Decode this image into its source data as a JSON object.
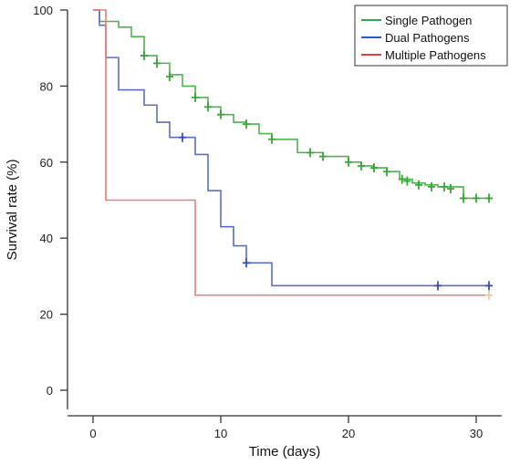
{
  "chart_data": {
    "type": "line",
    "step": true,
    "xlabel": "Time (days)",
    "ylabel": "Survival rate (%)",
    "xlim": [
      -2,
      32
    ],
    "ylim": [
      -5,
      100
    ],
    "x_ticks": [
      0,
      10,
      20,
      30
    ],
    "x_tick_labels": [
      "0",
      "10",
      "20",
      "30"
    ],
    "y_ticks": [
      0,
      20,
      40,
      60,
      80,
      100
    ],
    "y_tick_labels": [
      "0",
      "20",
      "40",
      "60",
      "80",
      "100"
    ],
    "legend_position": "top-right",
    "series": [
      {
        "name": "Single Pathogen",
        "color": "#4fb34f",
        "censor_color": "#3aa53a",
        "steps": [
          [
            0,
            100
          ],
          [
            0.5,
            97
          ],
          [
            2,
            95.5
          ],
          [
            3,
            93
          ],
          [
            4,
            88
          ],
          [
            5,
            86
          ],
          [
            6,
            83
          ],
          [
            7,
            80
          ],
          [
            8,
            77
          ],
          [
            9,
            74.5
          ],
          [
            10,
            72.5
          ],
          [
            11,
            70.5
          ],
          [
            12,
            70
          ],
          [
            13,
            67.5
          ],
          [
            14,
            66
          ],
          [
            16,
            62.5
          ],
          [
            18,
            61.5
          ],
          [
            20,
            60
          ],
          [
            21,
            59
          ],
          [
            22,
            58.5
          ],
          [
            23,
            57.5
          ],
          [
            24,
            55.5
          ],
          [
            25,
            54.5
          ],
          [
            26,
            54
          ],
          [
            27,
            53.5
          ],
          [
            29,
            50.5
          ],
          [
            31,
            50.5
          ]
        ],
        "censored": [
          [
            4,
            88
          ],
          [
            5,
            86
          ],
          [
            6,
            82.5
          ],
          [
            8,
            77
          ],
          [
            9,
            74.5
          ],
          [
            10,
            72.5
          ],
          [
            12,
            70
          ],
          [
            14,
            66
          ],
          [
            17,
            62.5
          ],
          [
            18,
            61.5
          ],
          [
            20,
            60
          ],
          [
            21,
            59
          ],
          [
            22,
            58.5
          ],
          [
            23,
            57.5
          ],
          [
            24.2,
            55.5
          ],
          [
            24.6,
            55
          ],
          [
            25.5,
            54
          ],
          [
            26.5,
            53.5
          ],
          [
            27.5,
            53.5
          ],
          [
            28,
            53
          ],
          [
            29,
            50.5
          ],
          [
            30,
            50.5
          ],
          [
            31,
            50.5
          ]
        ]
      },
      {
        "name": "Dual Pathogens",
        "color": "#5a6fc4",
        "censor_color": "#3a4fb0",
        "steps": [
          [
            0,
            100
          ],
          [
            0.5,
            96
          ],
          [
            1,
            87.5
          ],
          [
            2,
            79
          ],
          [
            4,
            75
          ],
          [
            5,
            70.5
          ],
          [
            6,
            66.5
          ],
          [
            8,
            62
          ],
          [
            9,
            52.5
          ],
          [
            10,
            43
          ],
          [
            11,
            38
          ],
          [
            12,
            33.5
          ],
          [
            14,
            27.5
          ],
          [
            31,
            27.5
          ]
        ],
        "censored": [
          [
            7,
            66.5
          ],
          [
            12,
            33.5
          ],
          [
            27,
            27.5
          ],
          [
            31,
            27.5
          ]
        ]
      },
      {
        "name": "Multiple Pathogens",
        "color": "#f07a7a",
        "censor_color": "#e8c9a0",
        "steps": [
          [
            0,
            100
          ],
          [
            1,
            50
          ],
          [
            8,
            25
          ],
          [
            31,
            25
          ]
        ],
        "censored": [
          [
            31,
            25
          ]
        ]
      }
    ]
  },
  "legend": {
    "items": [
      {
        "label": "Single Pathogen",
        "color": "#2fa84f"
      },
      {
        "label": "Dual Pathogens",
        "color": "#2a5ad0"
      },
      {
        "label": "Multiple Pathogens",
        "color": "#e83a3a"
      }
    ]
  }
}
